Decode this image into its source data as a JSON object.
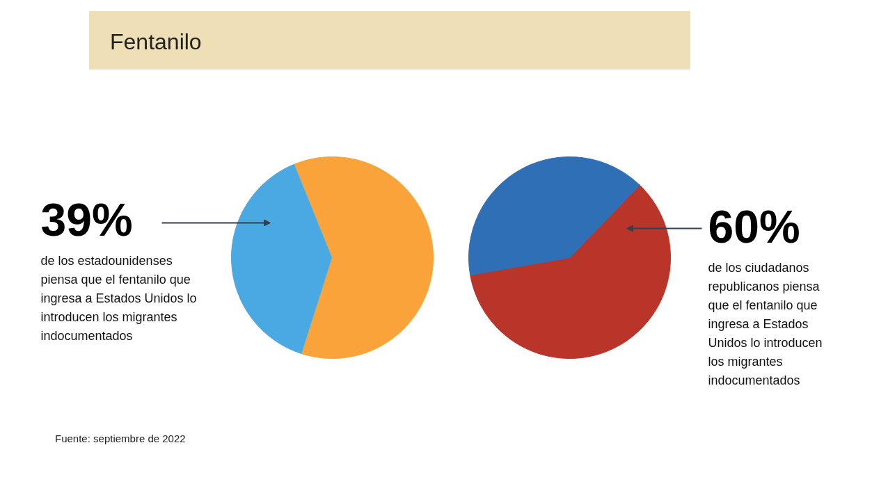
{
  "chart_data": [
    {
      "type": "pie",
      "title": "Fentanilo",
      "categories": [
        null,
        null
      ],
      "values": [
        39,
        61
      ],
      "colors": [
        "#4aa9e2",
        "#f9a33a"
      ],
      "annotations": [
        "39%",
        "de los estadounidenses piensa que el fentanilo que ingresa a Estados Unidos lo introducen los migrantes indocumentados",
        "Fuente: septiembre de 2022"
      ]
    },
    {
      "type": "pie",
      "categories": [
        null,
        null
      ],
      "values": [
        60,
        40
      ],
      "colors": [
        "#b9352a",
        "#2f6fb6"
      ],
      "annotations": [
        "60%",
        "de los ciudadanos republicanos piensa que el fentanilo que ingresa a Estados Unidos lo introducen los migrantes indocumentados"
      ]
    }
  ]
}
